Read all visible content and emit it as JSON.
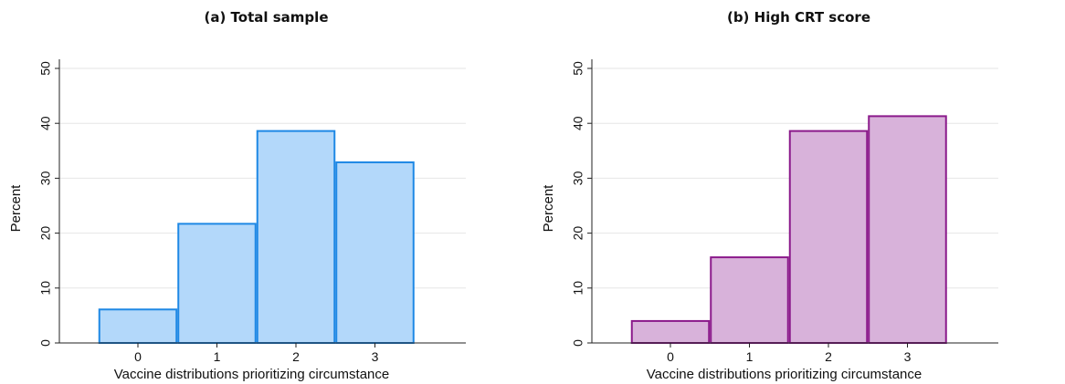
{
  "chart_data": [
    {
      "type": "bar",
      "title": "(a) Total sample",
      "xlabel": "Vaccine distributions prioritizing circumstance",
      "ylabel": "Percent",
      "categories": [
        "0",
        "1",
        "2",
        "3"
      ],
      "values": [
        6.1,
        21.7,
        38.6,
        32.9
      ],
      "ylim": [
        0,
        50
      ],
      "yticks": [
        "0",
        "10",
        "20",
        "30",
        "40",
        "50"
      ],
      "grid": true,
      "colors": {
        "fill": "#b3d8fa",
        "stroke": "#1e88e5"
      }
    },
    {
      "type": "bar",
      "title": "(b) High CRT score",
      "xlabel": "Vaccine distributions prioritizing circumstance",
      "ylabel": "Percent",
      "categories": [
        "0",
        "1",
        "2",
        "3"
      ],
      "values": [
        4.0,
        15.6,
        38.6,
        41.3
      ],
      "ylim": [
        0,
        50
      ],
      "yticks": [
        "0",
        "10",
        "20",
        "30",
        "40",
        "50"
      ],
      "grid": true,
      "colors": {
        "fill": "#d8b2da",
        "stroke": "#8b1a8b"
      }
    }
  ]
}
